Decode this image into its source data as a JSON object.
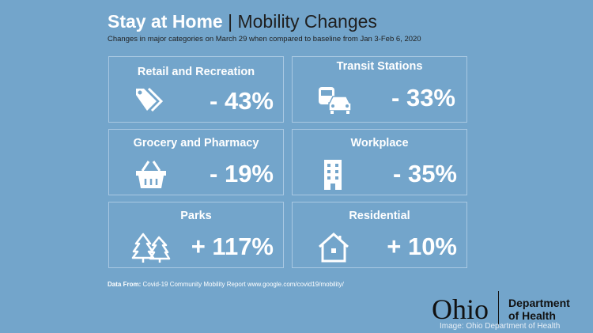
{
  "header": {
    "title_bold": "Stay at Home",
    "separator": "|",
    "title_rest": "Mobility Changes",
    "subtitle": "Changes in major categories on March 29 when compared to baseline from Jan 3-Feb 6, 2020"
  },
  "cards": [
    {
      "label": "Retail and Recreation",
      "value": "- 43%",
      "icon": "tag-icon"
    },
    {
      "label": "Transit Stations",
      "value": "- 33%",
      "icon": "bus-car-icon"
    },
    {
      "label": "Grocery and Pharmacy",
      "value": "- 19%",
      "icon": "basket-icon"
    },
    {
      "label": "Workplace",
      "value": "- 35%",
      "icon": "building-icon"
    },
    {
      "label": "Parks",
      "value": "+ 117%",
      "icon": "trees-icon"
    },
    {
      "label": "Residential",
      "value": "+ 10%",
      "icon": "house-icon"
    }
  ],
  "source": {
    "prefix": "Data From:",
    "text": "Covid-19 Community Mobility Report www.google.com/covid19/mobility/"
  },
  "logo": {
    "ohio": "Ohio",
    "dept_line1": "Department",
    "dept_line2": "of Health"
  },
  "credit": "Image: Ohio Department of Health"
}
